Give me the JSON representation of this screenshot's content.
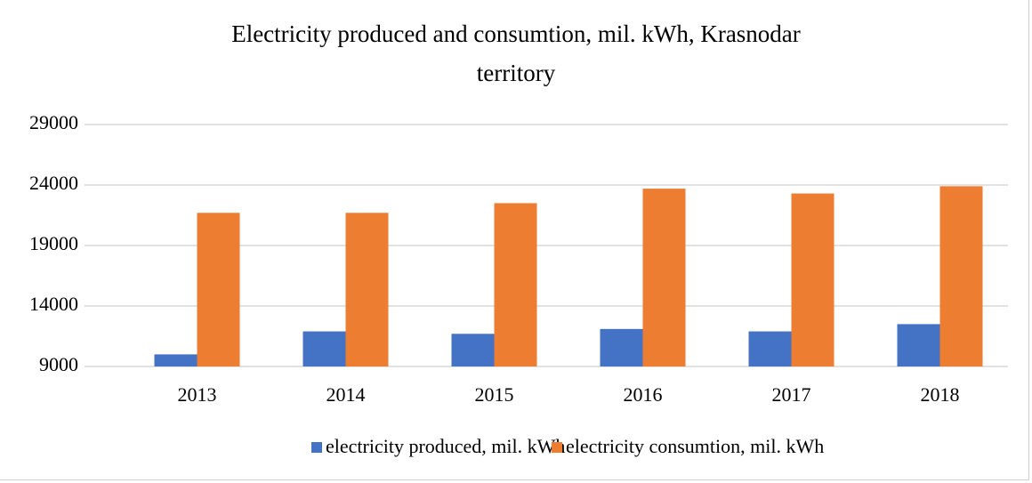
{
  "chart_data": {
    "type": "bar",
    "title": "Electricity produced and consumtion, mil. kWh, Krasnodar territory",
    "categories": [
      "2013",
      "2014",
      "2015",
      "2016",
      "2017",
      "2018"
    ],
    "series": [
      {
        "name": "electricity produced, mil. kWh",
        "color": "#4472c4",
        "values": [
          10000,
          11900,
          11700,
          12100,
          11900,
          12500
        ]
      },
      {
        "name": "electricity consumtion, mil. kWh",
        "color": "#ed7d31",
        "values": [
          21700,
          21700,
          22500,
          23700,
          23300,
          23900
        ]
      }
    ],
    "ylim": [
      9000,
      29000
    ],
    "yticks": [
      9000,
      14000,
      19000,
      24000,
      29000
    ],
    "grid": true,
    "legend": "bottom"
  }
}
